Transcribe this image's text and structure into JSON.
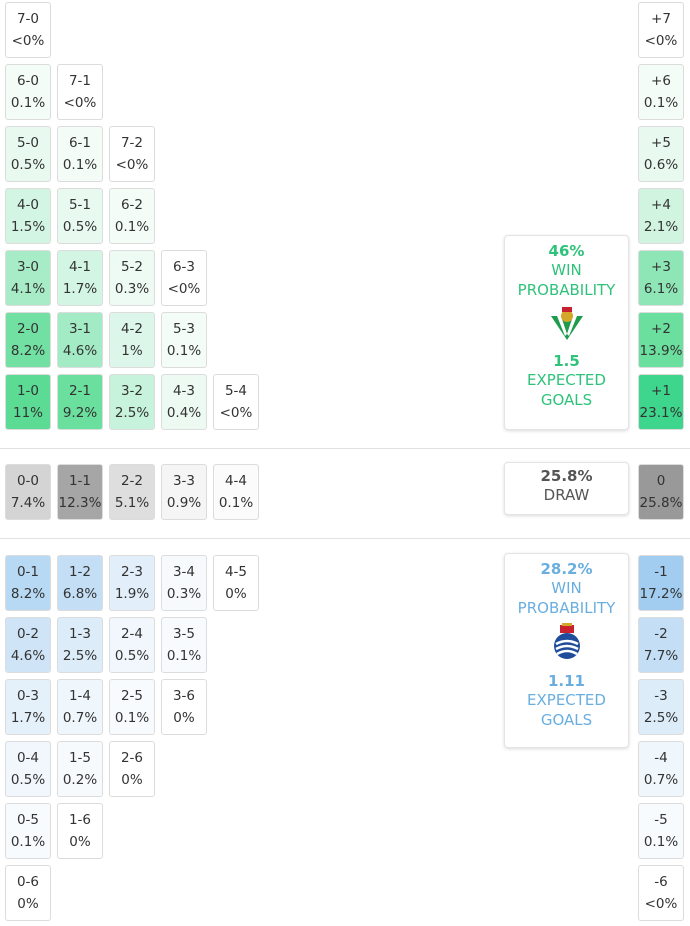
{
  "home_wins": {
    "rows": [
      [
        [
          "7-0",
          "<0%",
          "#ffffff"
        ]
      ],
      [
        [
          "6-0",
          "0.1%",
          "#f4fcf8"
        ],
        [
          "7-1",
          "<0%",
          "#ffffff"
        ]
      ],
      [
        [
          "5-0",
          "0.5%",
          "#e8f9f0"
        ],
        [
          "6-1",
          "0.1%",
          "#f4fcf8"
        ],
        [
          "7-2",
          "<0%",
          "#ffffff"
        ]
      ],
      [
        [
          "4-0",
          "1.5%",
          "#d3f5e3"
        ],
        [
          "5-1",
          "0.5%",
          "#e8f9f0"
        ],
        [
          "6-2",
          "0.1%",
          "#f4fcf8"
        ]
      ],
      [
        [
          "3-0",
          "4.1%",
          "#a8ecc7"
        ],
        [
          "4-1",
          "1.7%",
          "#d3f5e3"
        ],
        [
          "5-2",
          "0.3%",
          "#eefbf4"
        ],
        [
          "6-3",
          "<0%",
          "#ffffff"
        ]
      ],
      [
        [
          "2-0",
          "8.2%",
          "#72e0a3"
        ],
        [
          "3-1",
          "4.6%",
          "#a3ebc4"
        ],
        [
          "4-2",
          "1%",
          "#dcf7e9"
        ],
        [
          "5-3",
          "0.1%",
          "#f4fcf8"
        ]
      ],
      [
        [
          "1-0",
          "11%",
          "#5cdb95"
        ],
        [
          "2-1",
          "9.2%",
          "#6bdf9e"
        ],
        [
          "3-2",
          "2.5%",
          "#c7f2db"
        ],
        [
          "4-3",
          "0.4%",
          "#ecfaf2"
        ],
        [
          "5-4",
          "<0%",
          "#ffffff"
        ]
      ]
    ]
  },
  "draws": {
    "rows": [
      [
        [
          "0-0",
          "7.4%",
          "#d4d4d4"
        ],
        [
          "1-1",
          "12.3%",
          "#a6a6a6"
        ],
        [
          "2-2",
          "5.1%",
          "#dedede"
        ],
        [
          "3-3",
          "0.9%",
          "#f5f5f5"
        ],
        [
          "4-4",
          "0.1%",
          "#fbfbfb"
        ]
      ]
    ]
  },
  "away_wins": {
    "rows": [
      [
        [
          "0-1",
          "8.2%",
          "#b8d9f3"
        ],
        [
          "1-2",
          "6.8%",
          "#c3def5"
        ],
        [
          "2-3",
          "1.9%",
          "#e2eefa"
        ],
        [
          "3-4",
          "0.3%",
          "#f6fafd"
        ],
        [
          "4-5",
          "0%",
          "#ffffff"
        ]
      ],
      [
        [
          "0-2",
          "4.6%",
          "#cfe5f7"
        ],
        [
          "1-3",
          "2.5%",
          "#dcecf9"
        ],
        [
          "2-4",
          "0.5%",
          "#f1f7fc"
        ],
        [
          "3-5",
          "0.1%",
          "#f8fbfe"
        ]
      ],
      [
        [
          "0-3",
          "1.7%",
          "#e4f0fa"
        ],
        [
          "1-4",
          "0.7%",
          "#eff6fc"
        ],
        [
          "2-5",
          "0.1%",
          "#f8fbfe"
        ],
        [
          "3-6",
          "0%",
          "#ffffff"
        ]
      ],
      [
        [
          "0-4",
          "0.5%",
          "#f1f7fc"
        ],
        [
          "1-5",
          "0.2%",
          "#f6fafd"
        ],
        [
          "2-6",
          "0%",
          "#ffffff"
        ]
      ],
      [
        [
          "0-5",
          "0.1%",
          "#f8fbfe"
        ],
        [
          "1-6",
          "0%",
          "#ffffff"
        ]
      ],
      [
        [
          "0-6",
          "0%",
          "#ffffff"
        ]
      ]
    ]
  },
  "margins": [
    [
      "+7",
      "<0%",
      "#ffffff"
    ],
    [
      "+6",
      "0.1%",
      "#f4fcf8"
    ],
    [
      "+5",
      "0.6%",
      "#e8f9f0"
    ],
    [
      "+4",
      "2.1%",
      "#d0f4e0"
    ],
    [
      "+3",
      "6.1%",
      "#8ee6b6"
    ],
    [
      "+2",
      "13.9%",
      "#6bdf9e"
    ],
    [
      "+1",
      "23.1%",
      "#3dd68c"
    ],
    [
      "0",
      "25.8%",
      "#999999"
    ],
    [
      "-1",
      "17.2%",
      "#a3cdf0"
    ],
    [
      "-2",
      "7.7%",
      "#c3def5"
    ],
    [
      "-3",
      "2.5%",
      "#dcecf9"
    ],
    [
      "-4",
      "0.7%",
      "#eff6fc"
    ],
    [
      "-5",
      "0.1%",
      "#f8fbfe"
    ],
    [
      "-6",
      "<0%",
      "#ffffff"
    ]
  ],
  "home_summary": {
    "win_pct": "46%",
    "win_label": "WIN PROBABILITY",
    "xg": "1.5",
    "xg_label": "EXPECTED GOALS"
  },
  "draw_summary": {
    "pct": "25.8%",
    "label": "DRAW"
  },
  "away_summary": {
    "win_pct": "28.2%",
    "win_label": "WIN PROBABILITY",
    "xg": "1.11",
    "xg_label": "EXPECTED GOALS"
  }
}
